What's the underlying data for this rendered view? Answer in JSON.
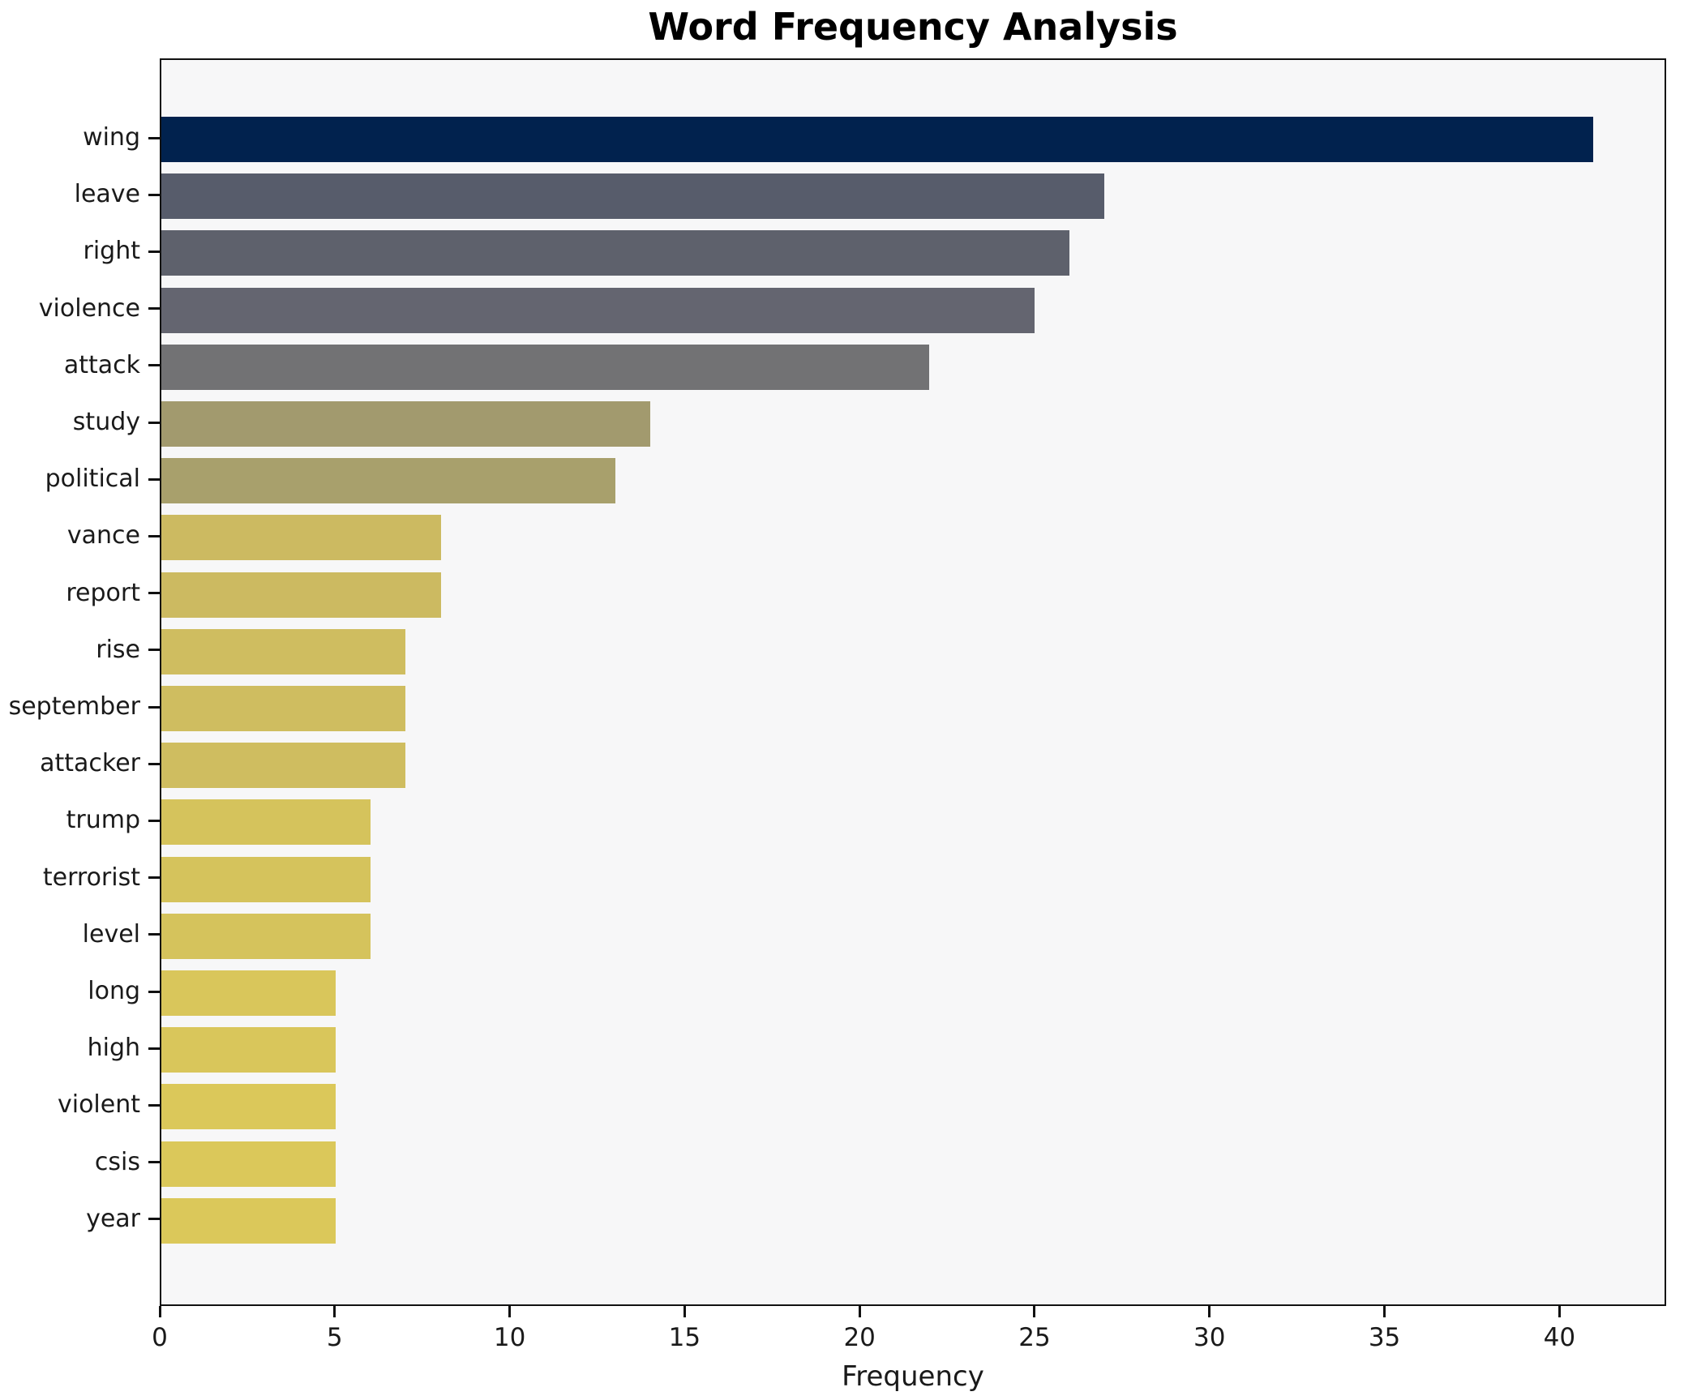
{
  "chart_data": {
    "type": "bar",
    "orientation": "horizontal",
    "title": "Word Frequency Analysis",
    "xlabel": "Frequency",
    "ylabel": "",
    "categories": [
      "wing",
      "leave",
      "right",
      "violence",
      "attack",
      "study",
      "political",
      "vance",
      "report",
      "rise",
      "september",
      "attacker",
      "trump",
      "terrorist",
      "level",
      "long",
      "high",
      "violent",
      "csis",
      "year"
    ],
    "values": [
      41,
      27,
      26,
      25,
      22,
      14,
      13,
      8,
      8,
      7,
      7,
      7,
      6,
      6,
      6,
      5,
      5,
      5,
      5,
      5
    ],
    "bar_colors": [
      "#01224e",
      "#575c6b",
      "#5e616c",
      "#646570",
      "#727274",
      "#a29a6e",
      "#a8a06c",
      "#ccba61",
      "#ccba61",
      "#cfbd60",
      "#cfbd60",
      "#cfbd60",
      "#d5c35c",
      "#d5c35c",
      "#d5c35c",
      "#d9c65b",
      "#d9c65b",
      "#dbc85a",
      "#dbc85a",
      "#dbc85a"
    ],
    "xlim": [
      0,
      43.05
    ],
    "x_ticks": [
      0,
      5,
      10,
      15,
      20,
      25,
      30,
      35,
      40
    ],
    "grid": false,
    "legend": null,
    "plot_background": "#f7f7f8",
    "figure_background": "#ffffff",
    "spine_color": "#111111"
  }
}
